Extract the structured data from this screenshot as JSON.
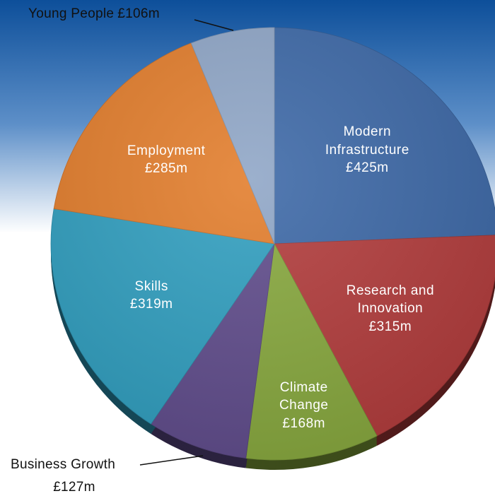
{
  "chart_data": {
    "type": "pie",
    "categories": [
      "Modern Infrastructure",
      "Research and Innovation",
      "Climate Change",
      "Business Growth",
      "Skills",
      "Employment",
      "Young People"
    ],
    "values": [
      425,
      315,
      168,
      127,
      319,
      285,
      106
    ],
    "value_labels": [
      "£425m",
      "£315m",
      "£168m",
      "£127m",
      "£319m",
      "£285m",
      "£106m"
    ],
    "colors": [
      "#3b67a6",
      "#b23b3b",
      "#87a83d",
      "#5f4b8b",
      "#2f9ebf",
      "#e27c2a",
      "#8ea5c6"
    ]
  }
}
